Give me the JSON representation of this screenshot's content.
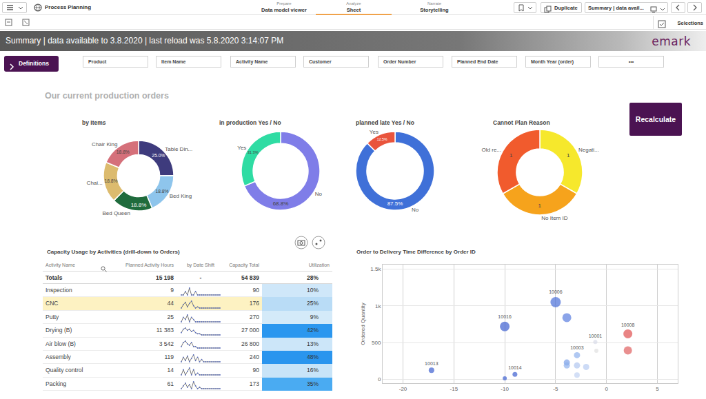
{
  "app_bar": {
    "app_name": "Process Planning",
    "tabs": [
      {
        "label": "Prepare",
        "value": "Data model viewer"
      },
      {
        "label": "Analyze",
        "value": "Sheet",
        "active": true
      },
      {
        "label": "Narrate",
        "value": "Storytelling"
      }
    ],
    "duplicate": "Duplicate",
    "sheet": "Summary | data avail..."
  },
  "toolbar": {
    "selections": "Selections"
  },
  "title_bar": {
    "text": "Summary | data available to 3.8.2020 | last reload was 5.8.2020 3:14:07 PM",
    "logo": "emark"
  },
  "filters": {
    "button": "Definitions",
    "boxes": [
      "Product",
      "Item Name",
      "Activity Name",
      "Customer",
      "Order Number",
      "Planned End Date",
      "Month Year (order)",
      "•••"
    ]
  },
  "section_title": "Our current production orders",
  "recalculate": "Recalculate",
  "chart_data": [
    {
      "type": "pie",
      "title": "by Items",
      "categories": [
        "Table Din...",
        "Bed King",
        "Bed Queen",
        "Chai...",
        "Chair King"
      ],
      "values": [
        25.0,
        18.8,
        18.8,
        18.8,
        18.8
      ],
      "value_labels": [
        "25.0%",
        "18.8%",
        "18.8%",
        "18.8%",
        "18.8%"
      ],
      "colors": [
        "#3e3b7d",
        "#8ec5ec",
        "#1f6b3c",
        "#dcbb6e",
        "#d5707a"
      ],
      "data_labels": true
    },
    {
      "type": "pie",
      "title": "in production Yes / No",
      "categories": [
        "No",
        "Yes"
      ],
      "values": [
        68.8,
        31.3
      ],
      "value_labels": [
        "68.8%",
        "31.3%"
      ],
      "colors": [
        "#7f7de8",
        "#2fdca3"
      ],
      "data_labels": true
    },
    {
      "type": "pie",
      "title": "planned late Yes / No",
      "categories": [
        "No",
        "Yes"
      ],
      "values": [
        87.5,
        12.5
      ],
      "value_labels": [
        "87.5%",
        "12.5%"
      ],
      "colors": [
        "#3f70d8",
        "#e9543c"
      ],
      "data_labels": true
    },
    {
      "type": "pie",
      "title": "Cannot Plan Reason",
      "categories": [
        "Negati...",
        "No Item ID",
        "Old re..."
      ],
      "values": [
        1,
        1,
        1
      ],
      "colors": [
        "#f6e82c",
        "#f6a31c",
        "#f15b2d"
      ],
      "data_labels": true
    },
    {
      "type": "scatter",
      "title": "Order to Delivery Time Difference by Order ID",
      "ylabel": "Ordered Quantity",
      "x": [
        -17.2,
        -10,
        -10,
        -9,
        -5,
        -3.9,
        -1.1,
        2.1,
        2.1,
        -2.9,
        -3.9,
        -3.9,
        -2.9,
        -2.0,
        -2.9,
        -1.0
      ],
      "values": [
        125,
        720,
        15,
        70,
        1050,
        840,
        510,
        620,
        395,
        330,
        230,
        190,
        190,
        170,
        60,
        390
      ],
      "sizes": [
        8,
        14,
        6,
        7,
        15,
        13,
        6,
        13,
        12,
        9,
        9,
        9,
        9,
        9,
        8,
        6
      ],
      "colors": [
        "#3d5fd0",
        "#3d5fd0",
        "#3d5fd0",
        "#3d5fd0",
        "#4a6fd8",
        "#5a7de0",
        "#d8dce8",
        "#e05050",
        "#e06060",
        "#8fb0ec",
        "#7aa0e8",
        "#8fb0ec",
        "#b0c6f0",
        "#b8ccf2",
        "#c0d2f2",
        "#e0e0e0"
      ],
      "labels": [
        "10013",
        "10016",
        null,
        "10014",
        "10006",
        null,
        "10001",
        "10008",
        null,
        "10003",
        null,
        null,
        null,
        null,
        null,
        null
      ],
      "xlim": [
        -22,
        7
      ],
      "xticks": [
        -20,
        -15,
        -10,
        -5,
        0,
        5
      ],
      "ylim": [
        -50,
        1560
      ],
      "yticks": [
        0,
        500,
        {
          "value": 1000,
          "label": "1k"
        },
        {
          "value": 1500,
          "label": "1.5k"
        }
      ],
      "grid": true
    }
  ],
  "table": {
    "title": "Capacity Usage by Activities (drill-down to Orders)",
    "columns": [
      "Activity Name",
      "Planned Activity Hours",
      "by Date Shift",
      "Capacity Total",
      "Utilization"
    ],
    "totals": {
      "activity": "Totals",
      "planned_hours": "15 198",
      "by_date_shift": "-",
      "capacity_total": "54 839",
      "utilization": "28%"
    },
    "rows": [
      {
        "activity": "Inspection",
        "planned_hours": "9",
        "by_date_shift": [
          0,
          0,
          1,
          0,
          2,
          0,
          0,
          1,
          0,
          0,
          0,
          0,
          0,
          0,
          0,
          0,
          0,
          0,
          0,
          0
        ],
        "capacity_total": "90",
        "utilization": "10%",
        "color": "#cfe7f9"
      },
      {
        "activity": "CNC",
        "planned_hours": "44",
        "by_date_shift": [
          0,
          3,
          5,
          1,
          4,
          6,
          2,
          0,
          1,
          0,
          0,
          0,
          0,
          0,
          0,
          0,
          0,
          0,
          0,
          0
        ],
        "capacity_total": "176",
        "utilization": "25%",
        "color": "#b9dcf6",
        "highlighted": true
      },
      {
        "activity": "Putty",
        "planned_hours": "25",
        "by_date_shift": [
          0,
          2,
          1,
          3,
          0,
          2,
          1,
          0,
          0,
          0,
          0,
          0,
          0,
          0,
          0,
          0,
          0,
          0,
          0,
          0
        ],
        "capacity_total": "270",
        "utilization": "9%",
        "color": "#d4eaf9"
      },
      {
        "activity": "Drying (B)",
        "planned_hours": "11 383",
        "by_date_shift": [
          2,
          5,
          6,
          4,
          5,
          3,
          4,
          2,
          1,
          1,
          0,
          0,
          0,
          0,
          0,
          0,
          0,
          0,
          0,
          0
        ],
        "capacity_total": "27 000",
        "utilization": "42%",
        "color": "#2b97ef"
      },
      {
        "activity": "Air blow (B)",
        "planned_hours": "3 542",
        "by_date_shift": [
          1,
          4,
          5,
          3,
          2,
          4,
          1,
          1,
          0,
          0,
          0,
          0,
          0,
          0,
          0,
          0,
          0,
          0,
          0,
          0
        ],
        "capacity_total": "26 800",
        "utilization": "13%",
        "color": "#cce6f9"
      },
      {
        "activity": "Assembly",
        "planned_hours": "119",
        "by_date_shift": [
          0,
          4,
          1,
          5,
          0,
          3,
          6,
          1,
          4,
          0,
          2,
          0,
          0,
          0,
          0,
          0,
          0,
          0,
          0,
          0
        ],
        "capacity_total": "240",
        "utilization": "48%",
        "color": "#2a95ee"
      },
      {
        "activity": "Quality control",
        "planned_hours": "14",
        "by_date_shift": [
          0,
          3,
          0,
          2,
          4,
          0,
          3,
          0,
          1,
          0,
          0,
          0,
          0,
          0,
          0,
          0,
          0,
          0,
          0,
          0
        ],
        "capacity_total": "90",
        "utilization": "16%",
        "color": "#c8e4f8"
      },
      {
        "activity": "Packing",
        "planned_hours": "61",
        "by_date_shift": [
          0,
          2,
          4,
          1,
          3,
          0,
          5,
          2,
          0,
          1,
          0,
          0,
          0,
          0,
          0,
          0,
          0,
          0,
          0,
          0
        ],
        "capacity_total": "173",
        "utilization": "35%",
        "color": "#4aabf2"
      }
    ]
  }
}
